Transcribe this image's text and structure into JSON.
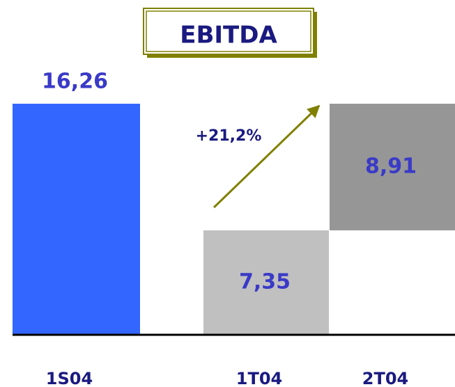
{
  "chart_data": {
    "type": "waterfall",
    "title": "EBITDA",
    "categories": [
      "1S04",
      "1T04",
      "2T04"
    ],
    "measure": [
      "total",
      "relative",
      "relative"
    ],
    "values": [
      16.26,
      7.35,
      8.91
    ],
    "value_labels": [
      "16,26",
      "7,35",
      "8,91"
    ],
    "colors": [
      "#3366ff",
      "#c0c0c0",
      "#969696"
    ],
    "ylim": [
      0,
      18
    ],
    "annotations": [
      {
        "text": "+21,2%"
      }
    ]
  }
}
